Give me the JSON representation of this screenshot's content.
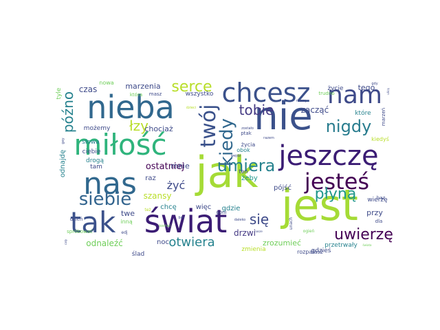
{
  "words": [
    {
      "text": "nie",
      "size": 56,
      "color": "#3b518b"
    },
    {
      "text": "jak",
      "size": 62,
      "color": "#a5db36"
    },
    {
      "text": "jest",
      "size": 62,
      "color": "#a5db36"
    },
    {
      "text": "świat",
      "size": 46,
      "color": "#3b1c74"
    },
    {
      "text": "miłość",
      "size": 42,
      "color": "#2fb47c"
    },
    {
      "text": "nieba",
      "size": 46,
      "color": "#31688e"
    },
    {
      "text": "nas",
      "size": 44,
      "color": "#31688e"
    },
    {
      "text": "tak",
      "size": 42,
      "color": "#3b518b"
    },
    {
      "text": "jeszczę",
      "size": 40,
      "color": "#3b1c74"
    },
    {
      "text": "chcesz",
      "size": 38,
      "color": "#3b518b"
    },
    {
      "text": "nam",
      "size": 36,
      "color": "#3e4a89"
    },
    {
      "text": "jesteś",
      "size": 32,
      "color": "#440154"
    },
    {
      "text": "twój",
      "size": 30,
      "color": "#3b528b"
    },
    {
      "text": "siebie",
      "size": 26,
      "color": "#32648e"
    },
    {
      "text": "umiera",
      "size": 24,
      "color": "#26828e"
    },
    {
      "text": "kiedy",
      "size": 26,
      "color": "#31688e"
    },
    {
      "text": "nigdy",
      "size": 24,
      "color": "#287c8e"
    },
    {
      "text": "tobie",
      "size": 20,
      "color": "#443983"
    },
    {
      "text": "uwierzę",
      "size": 22,
      "color": "#440154"
    },
    {
      "text": "płyną",
      "size": 22,
      "color": "#1f978b"
    },
    {
      "text": "serce",
      "size": 22,
      "color": "#b8de29"
    },
    {
      "text": "późno",
      "size": 20,
      "color": "#26828e"
    },
    {
      "text": "łzy",
      "size": 20,
      "color": "#b8de29"
    },
    {
      "text": "się",
      "size": 20,
      "color": "#3e4a89"
    },
    {
      "text": "otwiera",
      "size": 18,
      "color": "#26828e"
    },
    {
      "text": "żyć",
      "size": 16,
      "color": "#3e4a89"
    },
    {
      "text": "ostatniej",
      "size": 13,
      "color": "#440154"
    },
    {
      "text": "czas",
      "size": 12,
      "color": "#3e4a89"
    },
    {
      "text": "zacząć",
      "size": 12,
      "color": "#3e4a89"
    },
    {
      "text": "odnaleźć",
      "size": 12,
      "color": "#6ece58"
    },
    {
      "text": "szansy",
      "size": 12,
      "color": "#b8de29"
    },
    {
      "text": "chociaż",
      "size": 11,
      "color": "#3e4a89"
    },
    {
      "text": "mnie",
      "size": 11,
      "color": "#3e4a89"
    },
    {
      "text": "tego",
      "size": 11,
      "color": "#3e4a89"
    },
    {
      "text": "marzenia",
      "size": 11,
      "color": "#3e4a89"
    },
    {
      "text": "wszystko",
      "size": 9,
      "color": "#3e4a89"
    },
    {
      "text": "drzwi",
      "size": 12,
      "color": "#443983"
    },
    {
      "text": "przy",
      "size": 11,
      "color": "#3e4a89"
    },
    {
      "text": "twe",
      "size": 11,
      "color": "#3e4a89"
    },
    {
      "text": "zrozumieć",
      "size": 11,
      "color": "#6ece58"
    },
    {
      "text": "gdzie",
      "size": 10,
      "color": "#26828e"
    },
    {
      "text": "żeby",
      "size": 10,
      "color": "#1f978b"
    },
    {
      "text": "pójść",
      "size": 10,
      "color": "#3e4a89"
    },
    {
      "text": "noc",
      "size": 10,
      "color": "#3e4a89"
    },
    {
      "text": "raz",
      "size": 10,
      "color": "#3e4a89"
    },
    {
      "text": "chcę",
      "size": 10,
      "color": "#26828e"
    },
    {
      "text": "więc",
      "size": 10,
      "color": "#3e4a89"
    },
    {
      "text": "możemy",
      "size": 9,
      "color": "#3e4a89"
    },
    {
      "text": "słowa",
      "size": 9,
      "color": "#26828e"
    },
    {
      "text": "ciebie",
      "size": 9,
      "color": "#3e4a89"
    },
    {
      "text": "drogą",
      "size": 9,
      "color": "#26828e"
    },
    {
      "text": "tam",
      "size": 9,
      "color": "#3e4a89"
    },
    {
      "text": "odnajdę",
      "size": 10,
      "color": "#26828e"
    },
    {
      "text": "tyle",
      "size": 9,
      "color": "#6ece58"
    },
    {
      "text": "nowa",
      "size": 8,
      "color": "#6ece58"
    },
    {
      "text": "życie",
      "size": 9,
      "color": "#3e4a89"
    },
    {
      "text": "które",
      "size": 9,
      "color": "#26828e"
    },
    {
      "text": "życia",
      "size": 8,
      "color": "#3e4a89"
    },
    {
      "text": "obok",
      "size": 8,
      "color": "#26828e"
    },
    {
      "text": "kiedyś",
      "size": 8,
      "color": "#b8de29"
    },
    {
      "text": "gdzieś",
      "size": 9,
      "color": "#3e4a89"
    },
    {
      "text": "wierzę",
      "size": 9,
      "color": "#3e4a89"
    },
    {
      "text": "przetrwały",
      "size": 9,
      "color": "#26828e"
    },
    {
      "text": "rozpalasz",
      "size": 8,
      "color": "#3e4a89"
    },
    {
      "text": "zmienia",
      "size": 9,
      "color": "#b8de29"
    },
    {
      "text": "ślad",
      "size": 9,
      "color": "#3e4a89"
    },
    {
      "text": "inną",
      "size": 8,
      "color": "#6ece58"
    },
    {
      "text": "ten",
      "size": 8,
      "color": "#3e4a89"
    },
    {
      "text": "marzeń",
      "size": 7,
      "color": "#3e4a89"
    },
    {
      "text": "spróbować",
      "size": 7,
      "color": "#6ece58"
    },
    {
      "text": "dzień",
      "size": 7,
      "color": "#3e4a89"
    },
    {
      "text": "goni",
      "size": 7,
      "color": "#3e4a89"
    },
    {
      "text": "dla",
      "size": 7,
      "color": "#3e4a89"
    },
    {
      "text": "baz",
      "size": 7,
      "color": "#3e4a89"
    },
    {
      "text": "trudno",
      "size": 7,
      "color": "#6ece58"
    },
    {
      "text": "która",
      "size": 7,
      "color": "#6ece58"
    },
    {
      "text": "masz",
      "size": 7,
      "color": "#3e4a89"
    },
    {
      "text": "ptak",
      "size": 7,
      "color": "#3e4a89"
    },
    {
      "text": "unach",
      "size": 6,
      "color": "#3e4a89"
    },
    {
      "text": "ogień",
      "size": 6,
      "color": "#6ece58"
    },
    {
      "text": "edj",
      "size": 6,
      "color": "#3e4a89"
    },
    {
      "text": "też",
      "size": 6,
      "color": "#b8de29"
    },
    {
      "text": "gey",
      "size": 5,
      "color": "#3e4a89"
    },
    {
      "text": "dzieci",
      "size": 5,
      "color": "#b8de29"
    },
    {
      "text": "zostało",
      "size": 5,
      "color": "#3e4a89"
    },
    {
      "text": "gdy",
      "size": 5,
      "color": "#3e4a89"
    },
    {
      "text": "wejdź",
      "size": 5,
      "color": "#3e4a89"
    },
    {
      "text": "naszą",
      "size": 5,
      "color": "#3e4a89"
    },
    {
      "text": "boli",
      "size": 5,
      "color": "#3e4a89"
    },
    {
      "text": "daleko",
      "size": 5,
      "color": "#3e4a89"
    },
    {
      "text": "kochać",
      "size": 5,
      "color": "#6ece58"
    },
    {
      "text": "razem",
      "size": 5,
      "color": "#3e4a89"
    },
    {
      "text": "nasze",
      "size": 4,
      "color": "#3e4a89"
    },
    {
      "text": "ulicą",
      "size": 4,
      "color": "#3e4a89"
    },
    {
      "text": "cały",
      "size": 4,
      "color": "#3e4a89"
    },
    {
      "text": "świata",
      "size": 4,
      "color": "#6ece58"
    }
  ]
}
